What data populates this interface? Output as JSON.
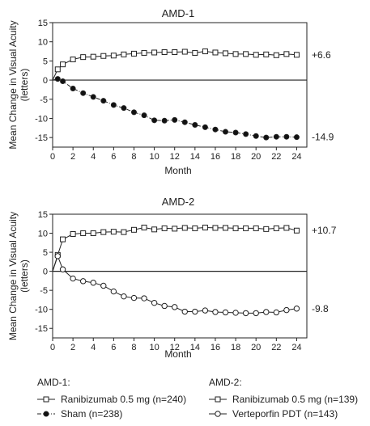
{
  "chart_data": [
    {
      "type": "line",
      "title": "AMD-1",
      "xlabel": "Month",
      "ylabel": "Mean Change in Visual Acuity (letters)",
      "ylabel_lines": [
        "Mean Change in Visual Acuity",
        "(letters)"
      ],
      "xlim": [
        0,
        25
      ],
      "ylim": [
        -17.5,
        15
      ],
      "xticks": [
        0,
        2,
        4,
        6,
        8,
        10,
        12,
        14,
        16,
        18,
        20,
        22,
        24
      ],
      "yticks": [
        15,
        10,
        5,
        0,
        -5,
        -10,
        -15
      ],
      "series": [
        {
          "name": "Ranibizumab 0.5 mg (n=240)",
          "marker": "square",
          "linestyle": "solid",
          "end_label": "+6.6",
          "x": [
            0,
            0.5,
            1,
            2,
            3,
            4,
            5,
            6,
            7,
            8,
            9,
            10,
            11,
            12,
            13,
            14,
            15,
            16,
            17,
            18,
            19,
            20,
            21,
            22,
            23,
            24
          ],
          "values": [
            0,
            2.8,
            4.1,
            5.4,
            6.0,
            6.1,
            6.3,
            6.4,
            6.7,
            6.9,
            7.1,
            7.2,
            7.3,
            7.3,
            7.4,
            7.1,
            7.5,
            7.2,
            7.0,
            6.8,
            6.8,
            6.6,
            6.7,
            6.5,
            6.8,
            6.6
          ]
        },
        {
          "name": "Sham (n=238)",
          "marker": "filled-circle",
          "linestyle": "dash-dot",
          "end_label": "-14.9",
          "x": [
            0,
            0.5,
            1,
            2,
            3,
            4,
            5,
            6,
            7,
            8,
            9,
            10,
            11,
            12,
            13,
            14,
            15,
            16,
            17,
            18,
            19,
            20,
            21,
            22,
            23,
            24
          ],
          "values": [
            0,
            0.3,
            -0.3,
            -2.2,
            -3.4,
            -4.4,
            -5.4,
            -6.5,
            -7.3,
            -8.4,
            -9.2,
            -10.5,
            -10.6,
            -10.4,
            -11.0,
            -11.7,
            -12.3,
            -12.9,
            -13.5,
            -13.7,
            -14.1,
            -14.6,
            -15.0,
            -14.8,
            -14.8,
            -14.9
          ]
        }
      ]
    },
    {
      "type": "line",
      "title": "AMD-2",
      "xlabel": "Month",
      "ylabel": "Mean Change in Visual Acuity (letters)",
      "ylabel_lines": [
        "Mean Change in Visual Acuity",
        "(letters)"
      ],
      "xlim": [
        0,
        25
      ],
      "ylim": [
        -17.5,
        15
      ],
      "xticks": [
        0,
        2,
        4,
        6,
        8,
        10,
        12,
        14,
        16,
        18,
        20,
        22,
        24
      ],
      "yticks": [
        15,
        10,
        5,
        0,
        -5,
        -10,
        -15
      ],
      "series": [
        {
          "name": "Ranibizumab 0.5 mg (n=139)",
          "marker": "square",
          "linestyle": "solid",
          "end_label": "+10.7",
          "x": [
            0,
            0.5,
            1,
            2,
            3,
            4,
            5,
            6,
            7,
            8,
            9,
            10,
            11,
            12,
            13,
            14,
            15,
            16,
            17,
            18,
            19,
            20,
            21,
            22,
            23,
            24
          ],
          "values": [
            0,
            4.3,
            8.4,
            9.8,
            10.0,
            10.0,
            10.3,
            10.4,
            10.3,
            10.9,
            11.5,
            11.0,
            11.3,
            11.2,
            11.4,
            11.3,
            11.5,
            11.4,
            11.4,
            11.3,
            11.3,
            11.3,
            11.1,
            11.3,
            11.4,
            10.7
          ]
        },
        {
          "name": "Verteporfin PDT (n=143)",
          "marker": "open-circle",
          "linestyle": "solid",
          "end_label": "-9.8",
          "x": [
            0,
            0.5,
            1,
            2,
            3,
            4,
            5,
            6,
            7,
            8,
            9,
            10,
            11,
            12,
            13,
            14,
            15,
            16,
            17,
            18,
            19,
            20,
            21,
            22,
            23,
            24
          ],
          "values": [
            0,
            4.0,
            0.5,
            -1.9,
            -2.6,
            -3.0,
            -3.8,
            -5.3,
            -6.6,
            -7.0,
            -7.1,
            -8.3,
            -9.1,
            -9.4,
            -10.6,
            -10.6,
            -10.3,
            -10.7,
            -10.8,
            -10.9,
            -11.0,
            -11.0,
            -10.7,
            -10.8,
            -10.2,
            -9.8
          ]
        }
      ]
    }
  ],
  "legend": {
    "groups": [
      {
        "title": "AMD-1:",
        "items": [
          {
            "label": "Ranibizumab 0.5 mg (n=240)",
            "marker": "square",
            "linestyle": "solid"
          },
          {
            "label": "Sham (n=238)",
            "marker": "filled-circle",
            "linestyle": "dash-dot"
          }
        ]
      },
      {
        "title": "AMD-2:",
        "items": [
          {
            "label": "Ranibizumab 0.5 mg (n=139)",
            "marker": "square",
            "linestyle": "solid"
          },
          {
            "label": "Verteporfin PDT (n=143)",
            "marker": "open-circle",
            "linestyle": "solid"
          }
        ]
      }
    ]
  },
  "colors": {
    "line": "#222222",
    "marker_fill": "#ffffff",
    "marker_filled": "#111111"
  }
}
